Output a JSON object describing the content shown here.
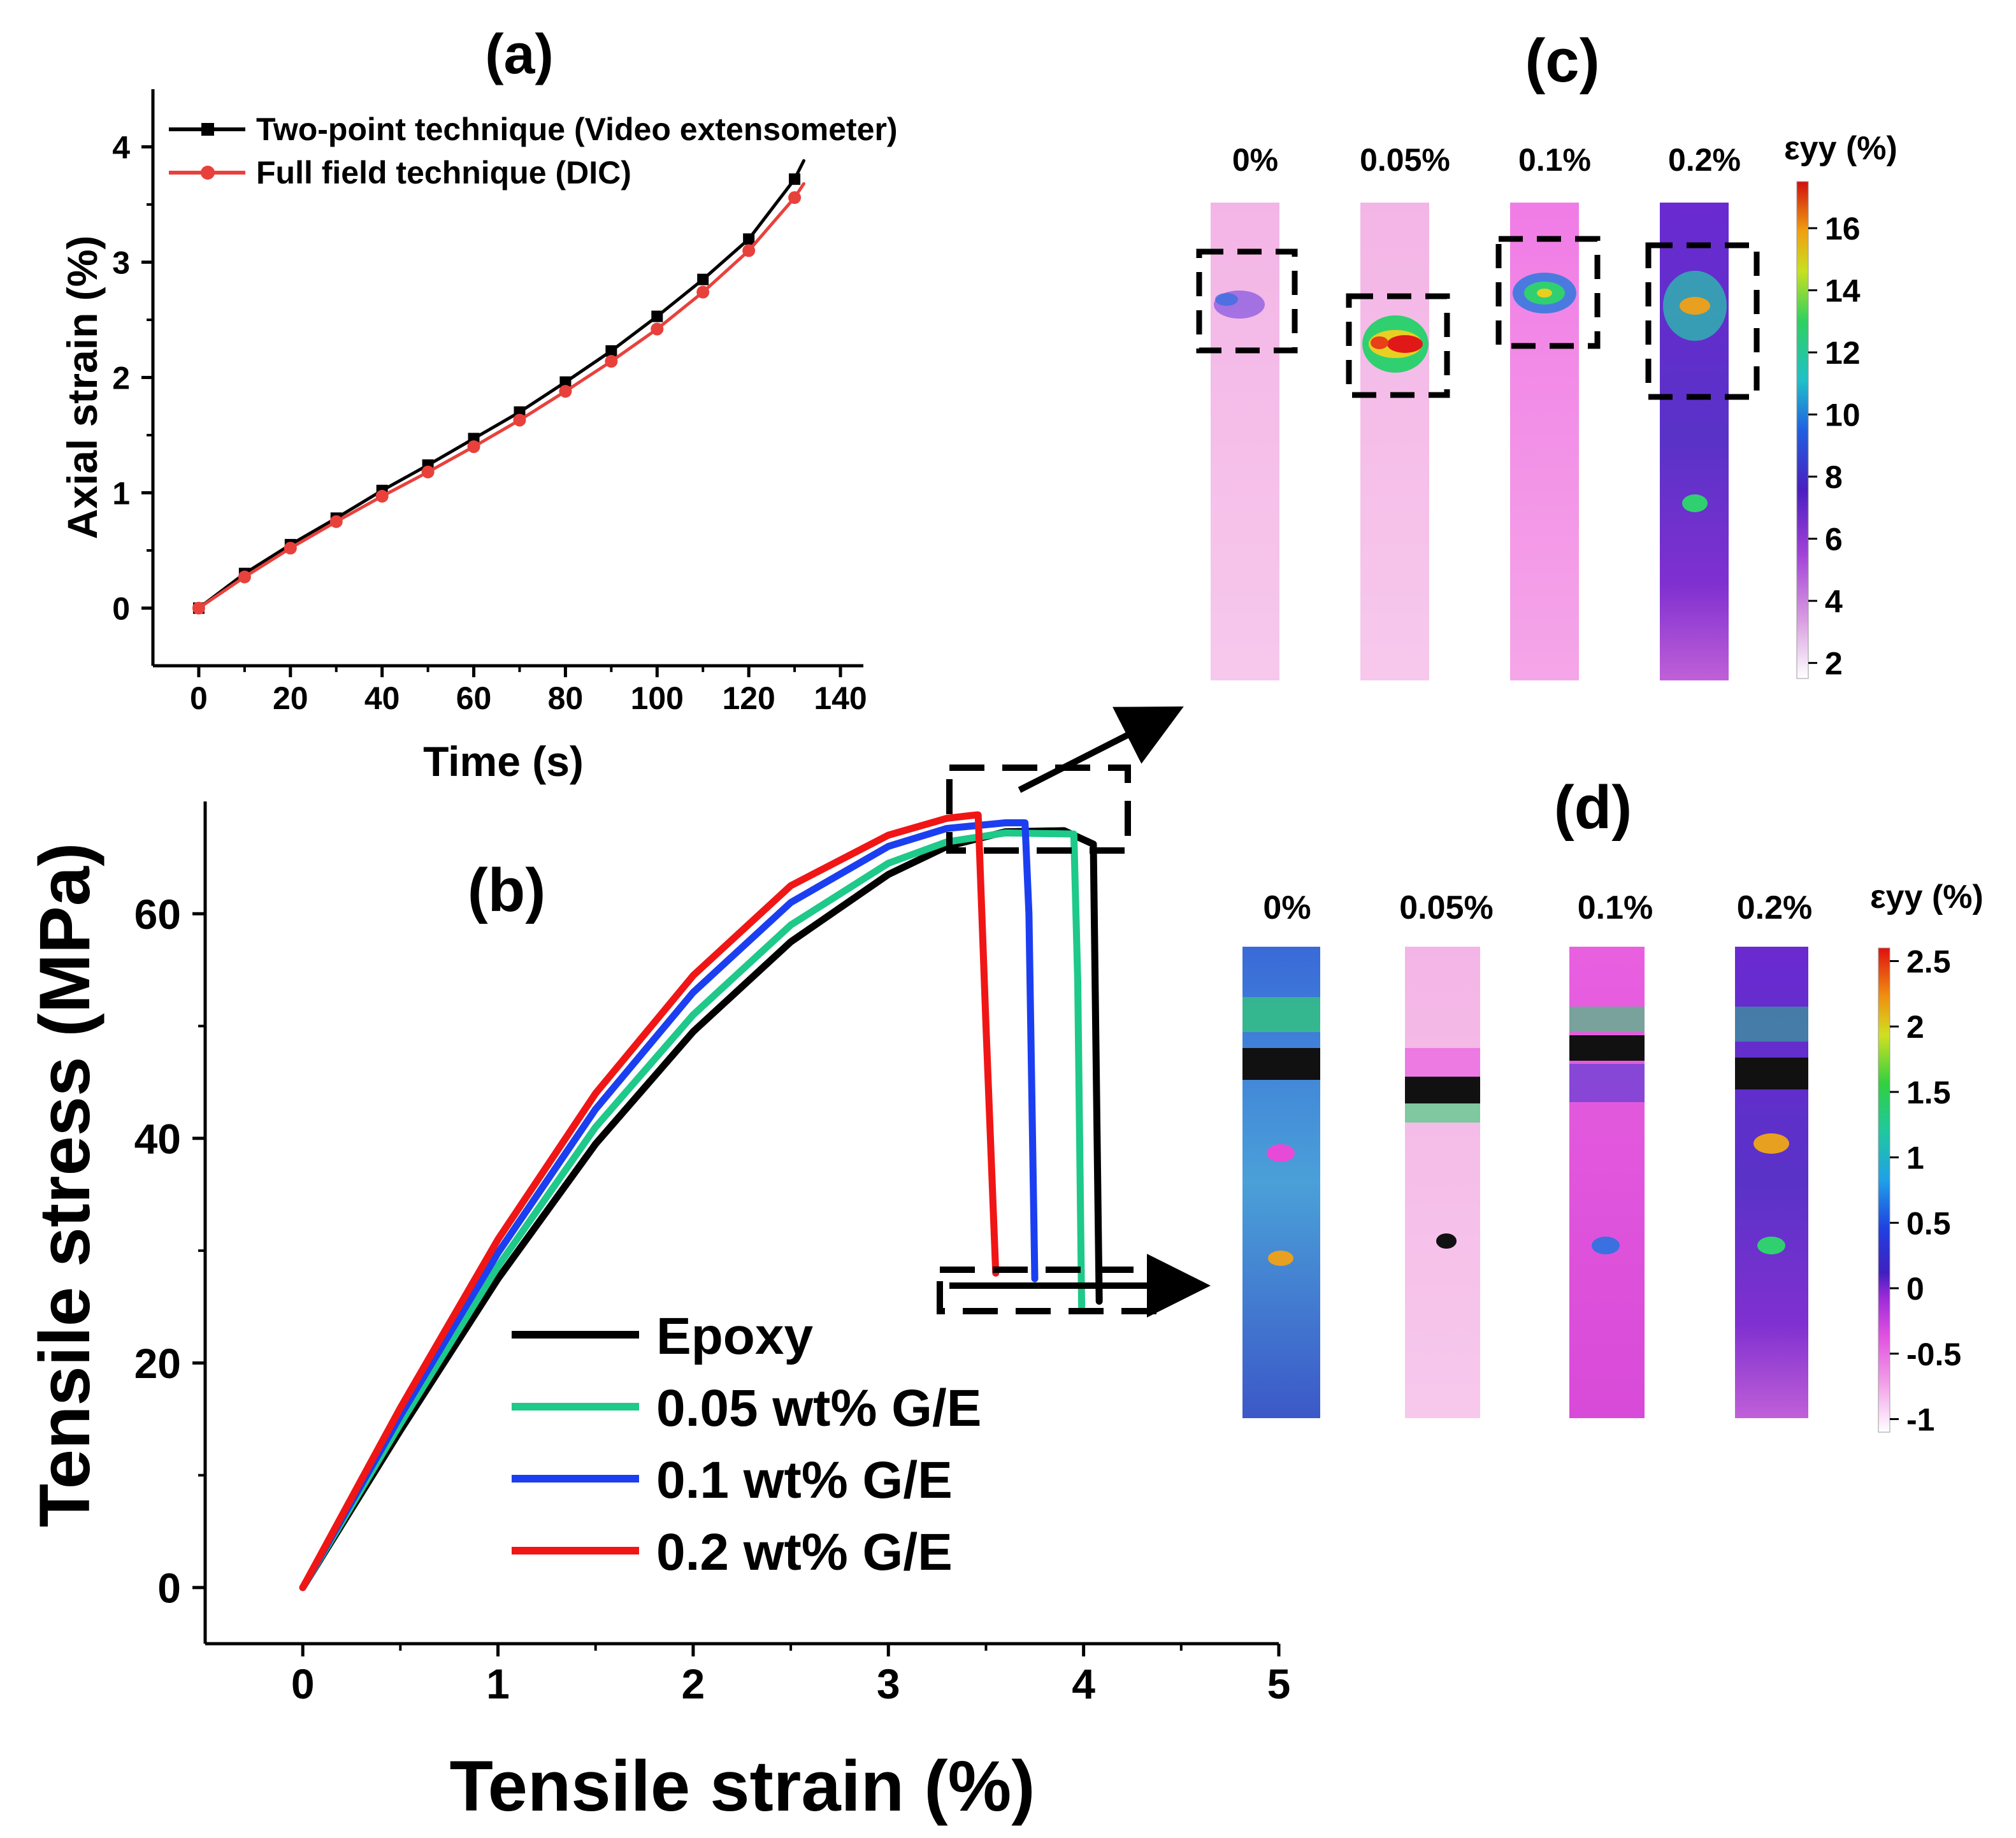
{
  "chart_data": [
    {
      "panel": "(a)",
      "type": "line",
      "xlabel": "Time (s)",
      "ylabel": "Axial strain (%)",
      "xlim": [
        -10,
        145
      ],
      "ylim": [
        -0.5,
        4.5
      ],
      "xticks": [
        0,
        20,
        40,
        60,
        80,
        100,
        120,
        140
      ],
      "yticks": [
        0,
        1,
        2,
        3,
        4
      ],
      "legend_position": "top-left",
      "series": [
        {
          "name": "Two-point technique (Video extensometer)",
          "color": "#000000",
          "marker": "square",
          "x": [
            0,
            10,
            20,
            30,
            40,
            50,
            60,
            70,
            80,
            90,
            100,
            110,
            120,
            130,
            132
          ],
          "y": [
            0,
            0.3,
            0.55,
            0.78,
            1.02,
            1.24,
            1.47,
            1.7,
            1.96,
            2.23,
            2.53,
            2.85,
            3.2,
            3.72,
            3.88
          ]
        },
        {
          "name": "Full field technique (DIC)",
          "color": "#e8413c",
          "marker": "circle",
          "x": [
            0,
            10,
            20,
            30,
            40,
            50,
            60,
            70,
            80,
            90,
            100,
            110,
            120,
            130,
            132
          ],
          "y": [
            0,
            0.27,
            0.52,
            0.75,
            0.97,
            1.18,
            1.4,
            1.63,
            1.88,
            2.14,
            2.42,
            2.74,
            3.1,
            3.56,
            3.68
          ]
        }
      ]
    },
    {
      "panel": "(b)",
      "type": "line",
      "xlabel": "Tensile strain (%)",
      "ylabel": "Tensile stress (MPa)",
      "xlim": [
        -0.5,
        5
      ],
      "ylim": [
        -5,
        70
      ],
      "xticks": [
        0,
        1,
        2,
        3,
        4,
        5
      ],
      "yticks": [
        0,
        20,
        40,
        60
      ],
      "legend_position": "bottom-center",
      "series": [
        {
          "name": "Epoxy",
          "color": "#000000",
          "x": [
            0,
            0.5,
            1.0,
            1.5,
            2.0,
            2.5,
            3.0,
            3.3,
            3.6,
            3.9,
            4.05,
            4.08
          ],
          "y": [
            0,
            14,
            27.5,
            39.5,
            49.5,
            57.5,
            63.5,
            66,
            67.3,
            67.4,
            66.2,
            25.5
          ]
        },
        {
          "name": "0.05 wt% G/E",
          "color": "#1ec98a",
          "x": [
            0,
            0.5,
            1.0,
            1.5,
            2.0,
            2.5,
            3.0,
            3.3,
            3.6,
            3.95,
            3.97,
            3.99
          ],
          "y": [
            0,
            14.6,
            28.6,
            41,
            51,
            59,
            64.5,
            66.4,
            67.2,
            67.1,
            54,
            25
          ]
        },
        {
          "name": "0.1 wt% G/E",
          "color": "#1b3ff0",
          "x": [
            0,
            0.5,
            1.0,
            1.5,
            2.0,
            2.5,
            3.0,
            3.3,
            3.6,
            3.7,
            3.72,
            3.75
          ],
          "y": [
            0,
            15.3,
            29.8,
            42.6,
            53,
            61,
            66,
            67.6,
            68.1,
            68.1,
            60,
            27.5
          ]
        },
        {
          "name": "0.2 wt% G/E",
          "color": "#f01616",
          "x": [
            0,
            0.5,
            1.0,
            1.5,
            2.0,
            2.5,
            3.0,
            3.3,
            3.45,
            3.46,
            3.5,
            3.55
          ],
          "y": [
            0,
            16,
            31,
            44,
            54.5,
            62.5,
            67,
            68.5,
            68.8,
            68.8,
            50,
            28
          ]
        }
      ]
    },
    {
      "panel": "(c)",
      "type": "heatmap",
      "colorbar_label": "εyy (%)",
      "colorbar_ticks": [
        "16",
        "14",
        "12",
        "10",
        "8",
        "6",
        "4",
        "2"
      ],
      "colorbar_range": [
        1.5,
        17.5
      ],
      "specimens": [
        "0%",
        "0.05%",
        "0.1%",
        "0.2%"
      ]
    },
    {
      "panel": "(d)",
      "type": "heatmap",
      "colorbar_label": "εyy (%)",
      "colorbar_ticks": [
        "2.5",
        "2",
        "1.5",
        "1",
        "0.5",
        "0",
        "-0.5",
        "-1"
      ],
      "colorbar_range": [
        -1.1,
        2.6
      ],
      "specimens": [
        "0%",
        "0.05%",
        "0.1%",
        "0.2%"
      ]
    }
  ]
}
